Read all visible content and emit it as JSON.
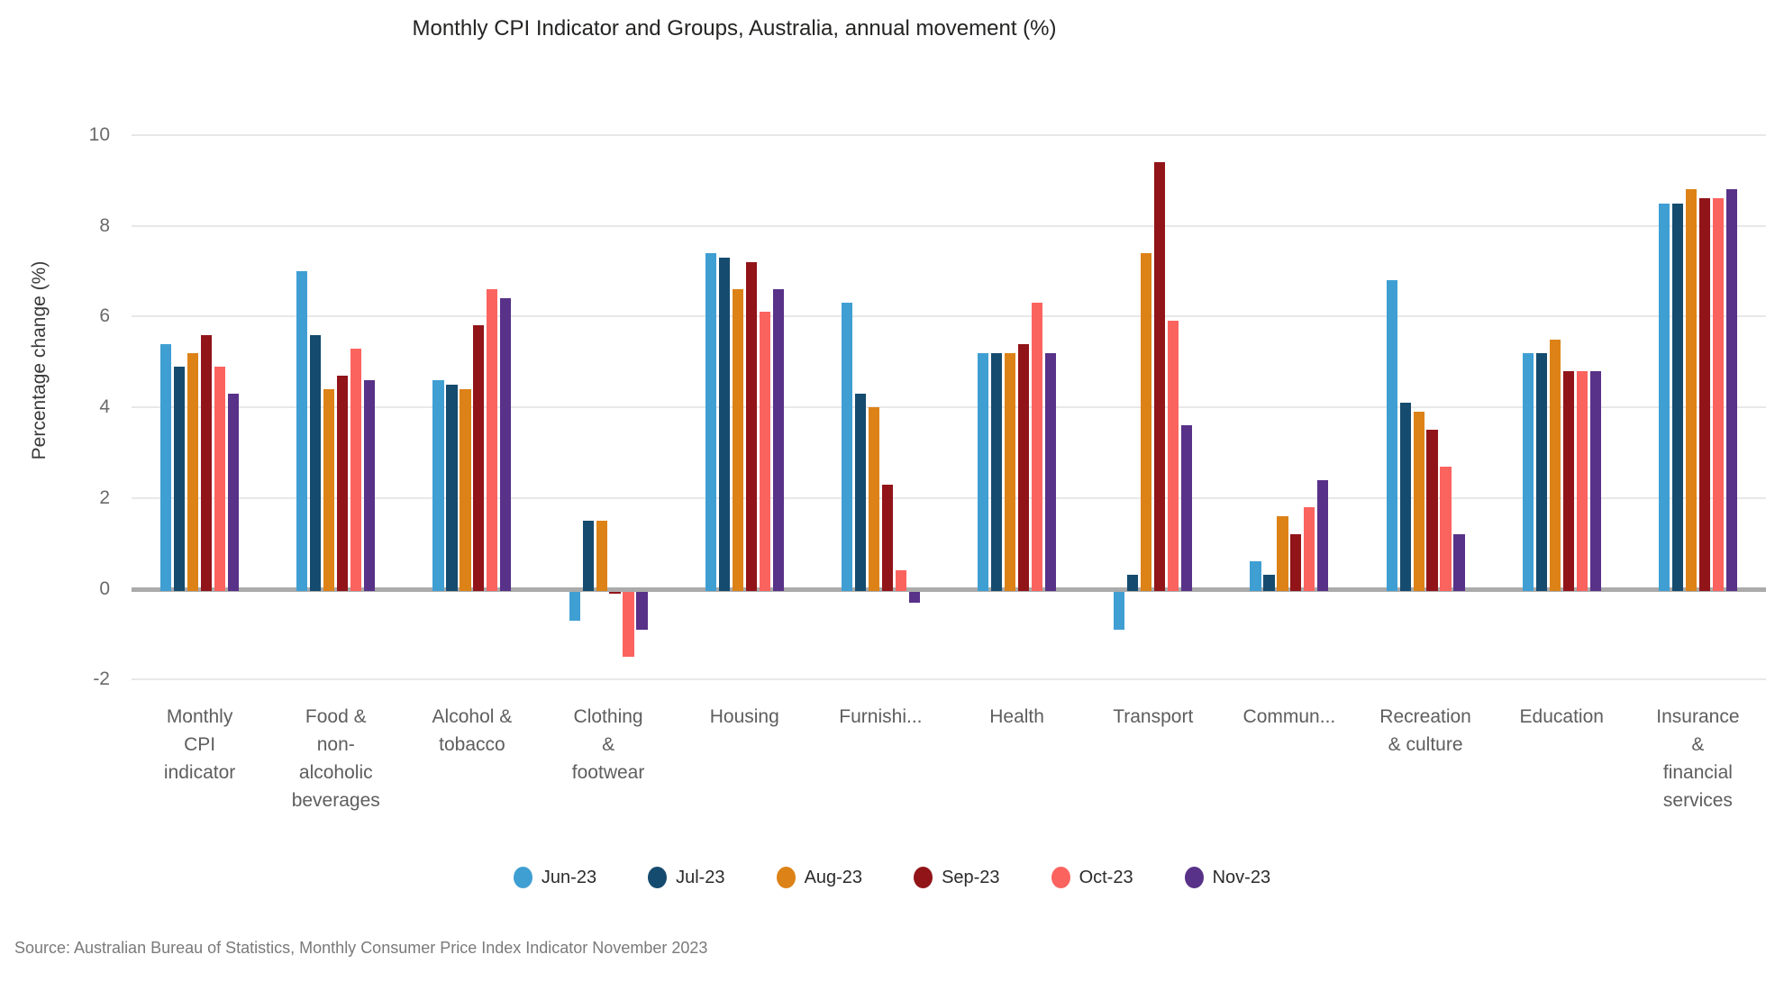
{
  "title": "Monthly CPI Indicator and Groups, Australia, annual movement (%)",
  "source_note": "Source: Australian Bureau of Statistics, Monthly Consumer Price Index Indicator November 2023",
  "chart_data": {
    "type": "bar",
    "title": "Monthly CPI Indicator and Groups, Australia, annual movement (%)",
    "xlabel": "",
    "ylabel": "Percentage change (%)",
    "ylim": [
      -2,
      10
    ],
    "yticks": [
      10,
      8,
      6,
      4,
      2,
      0,
      -2
    ],
    "grid": true,
    "legend_position": "bottom",
    "categories": [
      "Monthly CPI indicator",
      "Food & non-alcoholic beverages",
      "Alcohol & tobacco",
      "Clothing & footwear",
      "Housing",
      "Furnishings (truncated: Furnishi...)",
      "Health",
      "Transport",
      "Communication (truncated: Commun...)",
      "Recreation & culture",
      "Education",
      "Insurance & financial services"
    ],
    "category_display_labels": [
      "Monthly\nCPI\nindicator",
      "Food &\nnon-\nalcoholic\nbeverages",
      "Alcohol &\ntobacco",
      "Clothing\n&\nfootwear",
      "Housing",
      "Furnishi...",
      "Health",
      "Transport",
      "Commun...",
      "Recreation\n& culture",
      "Education",
      "Insurance\n&\nfinancial\nservices"
    ],
    "series": [
      {
        "name": "Jun-23",
        "color": "#3f9fd3",
        "values": [
          5.4,
          7.0,
          4.6,
          -0.7,
          7.4,
          6.3,
          5.2,
          -0.9,
          0.6,
          6.8,
          5.2,
          8.5
        ]
      },
      {
        "name": "Jul-23",
        "color": "#154b6e",
        "values": [
          4.9,
          5.6,
          4.5,
          1.5,
          7.3,
          4.3,
          5.2,
          0.3,
          0.3,
          4.1,
          5.2,
          8.5
        ]
      },
      {
        "name": "Aug-23",
        "color": "#dd8217",
        "values": [
          5.2,
          4.4,
          4.4,
          1.5,
          6.6,
          4.0,
          5.2,
          7.4,
          1.6,
          3.9,
          5.5,
          8.8
        ]
      },
      {
        "name": "Sep-23",
        "color": "#911419",
        "values": [
          5.6,
          4.7,
          5.8,
          -0.1,
          7.2,
          2.3,
          5.4,
          9.4,
          1.2,
          3.5,
          4.8,
          8.6
        ]
      },
      {
        "name": "Oct-23",
        "color": "#fb635f",
        "values": [
          4.9,
          5.3,
          6.6,
          -1.5,
          6.1,
          0.4,
          6.3,
          5.9,
          1.8,
          2.7,
          4.8,
          8.6
        ]
      },
      {
        "name": "Nov-23",
        "color": "#583188",
        "values": [
          4.3,
          4.6,
          6.4,
          -0.9,
          6.6,
          -0.3,
          5.2,
          3.6,
          2.4,
          1.2,
          4.8,
          8.8
        ]
      }
    ]
  }
}
